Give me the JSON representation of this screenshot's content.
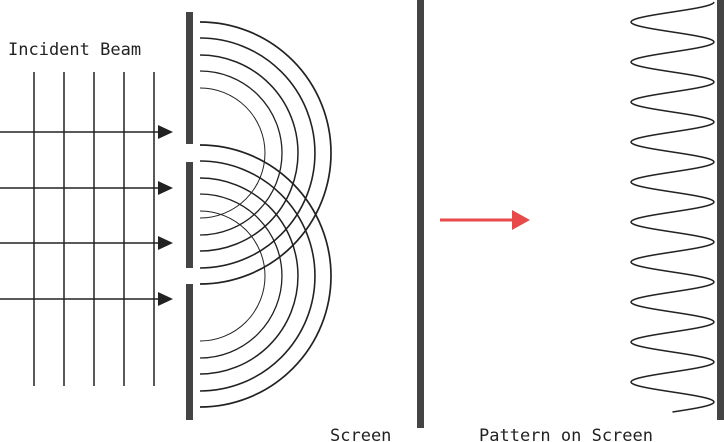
{
  "labels": {
    "incident": "Incident Beam",
    "screen": "Screen",
    "pattern": "Pattern on Screen"
  },
  "colors": {
    "ink": "#222222",
    "bar": "#444444",
    "arrow_highlight": "#e84a4a"
  }
}
